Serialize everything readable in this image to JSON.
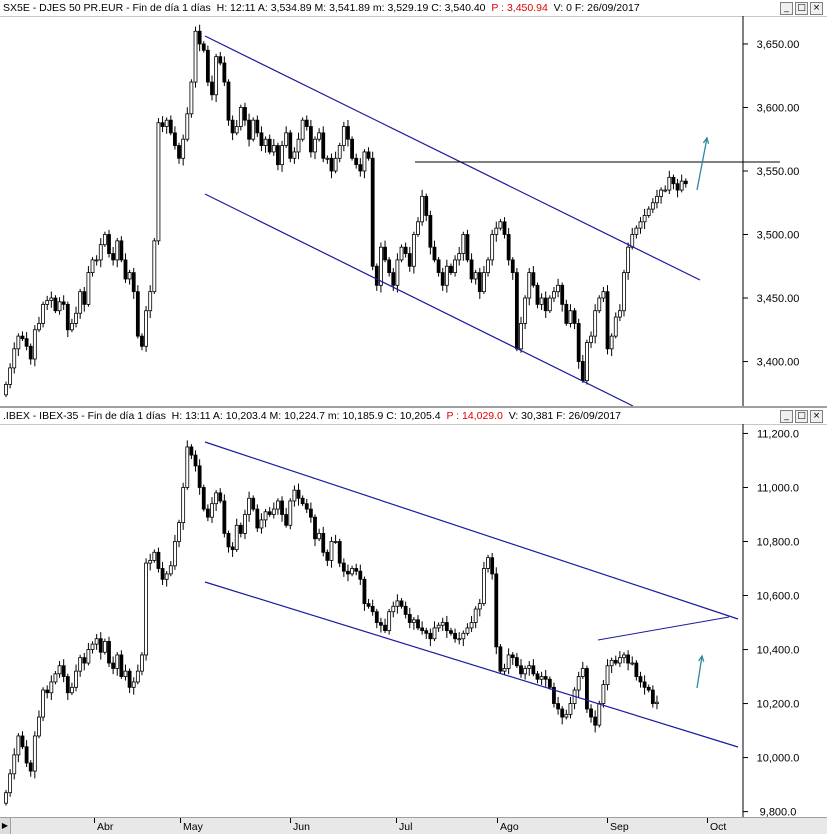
{
  "colors": {
    "line": "#1a1aa0",
    "bull": "#ffffff",
    "bear": "#000000",
    "arrow": "#2f8a9a",
    "resistance": "#000000",
    "price_change": "#e00000"
  },
  "panels": [
    {
      "title": {
        "symbol": "SX5E - DJES 50 PR.EUR - Fin de día 1 días",
        "stats": "H: 12:11  A: 3,534.89  M: 3,541.89  m: 3,529.19  C: 3,540.40",
        "pchange": "P : 3,450.94",
        "tail": "V: 0  F: 26/09/2017"
      },
      "yticks": [
        "3,650.00",
        "3,600.00",
        "3,550.00",
        "3,500.00",
        "3,450.00",
        "3,400.00"
      ]
    },
    {
      "title": {
        "symbol": ".IBEX - IBEX-35 - Fin de día 1 días",
        "stats": "H: 13:11  A: 10,203.4  M: 10,224.7  m: 10,185.9  C: 10,205.4",
        "pchange": "P : 14,029.0",
        "tail": "V: 30,381  F: 26/09/2017"
      },
      "yticks": [
        "11,200.0",
        "11,000.0",
        "10,800.0",
        "10,600.0",
        "10,400.0",
        "10,200.0",
        "10,000.0",
        "9,800.0"
      ]
    }
  ],
  "window_buttons": [
    "_",
    "□",
    "×"
  ],
  "months": [
    "Abr",
    "May",
    "Jun",
    "Jul",
    "Ago",
    "Sep",
    "Oct"
  ],
  "chart_data": [
    {
      "type": "candlestick",
      "title": "SX5E - DJES 50 PR.EUR",
      "ylim": [
        3365,
        3672
      ],
      "closes": [
        3382,
        3395,
        3410,
        3420,
        3418,
        3412,
        3402,
        3425,
        3430,
        3445,
        3448,
        3450,
        3440,
        3447,
        3445,
        3425,
        3430,
        3438,
        3455,
        3445,
        3470,
        3480,
        3480,
        3492,
        3500,
        3485,
        3480,
        3495,
        3480,
        3465,
        3470,
        3455,
        3420,
        3412,
        3440,
        3455,
        3495,
        3588,
        3585,
        3590,
        3580,
        3570,
        3560,
        3575,
        3595,
        3620,
        3660,
        3650,
        3645,
        3620,
        3610,
        3640,
        3635,
        3620,
        3590,
        3580,
        3585,
        3600,
        3590,
        3575,
        3590,
        3580,
        3570,
        3575,
        3565,
        3570,
        3555,
        3570,
        3580,
        3560,
        3565,
        3575,
        3590,
        3585,
        3565,
        3575,
        3580,
        3560,
        3560,
        3550,
        3560,
        3570,
        3585,
        3575,
        3560,
        3555,
        3550,
        3565,
        3560,
        3475,
        3460,
        3490,
        3480,
        3470,
        3460,
        3480,
        3490,
        3485,
        3475,
        3500,
        3510,
        3530,
        3515,
        3490,
        3480,
        3470,
        3460,
        3475,
        3470,
        3480,
        3485,
        3500,
        3480,
        3465,
        3470,
        3455,
        3470,
        3480,
        3500,
        3505,
        3510,
        3500,
        3480,
        3470,
        3410,
        3430,
        3450,
        3470,
        3460,
        3445,
        3450,
        3440,
        3450,
        3455,
        3460,
        3445,
        3430,
        3440,
        3430,
        3400,
        3385,
        3415,
        3420,
        3440,
        3450,
        3455,
        3410,
        3420,
        3435,
        3440,
        3470,
        3490,
        3500,
        3505,
        3510,
        3515,
        3520,
        3525,
        3530,
        3535,
        3535,
        3545,
        3540,
        3535,
        3542,
        3540
      ]
    },
    {
      "type": "candlestick",
      "title": "IBEX-35",
      "ylim": [
        9780,
        11235
      ],
      "closes": [
        9870,
        9940,
        10010,
        10080,
        10040,
        9980,
        9950,
        10080,
        10150,
        10250,
        10240,
        10280,
        10310,
        10340,
        10300,
        10240,
        10260,
        10320,
        10370,
        10350,
        10400,
        10420,
        10440,
        10390,
        10430,
        10350,
        10330,
        10380,
        10300,
        10320,
        10260,
        10280,
        10320,
        10380,
        10720,
        10730,
        10760,
        10700,
        10660,
        10680,
        10710,
        10800,
        10870,
        11000,
        11150,
        11120,
        11080,
        11000,
        10920,
        10890,
        10940,
        10980,
        10950,
        10830,
        10780,
        10770,
        10860,
        10830,
        10900,
        10960,
        10920,
        10850,
        10880,
        10910,
        10900,
        10920,
        10950,
        10900,
        10860,
        10950,
        10990,
        10960,
        10940,
        10920,
        10890,
        10810,
        10830,
        10760,
        10730,
        10800,
        10800,
        10720,
        10690,
        10680,
        10700,
        10690,
        10660,
        10570,
        10560,
        10540,
        10500,
        10490,
        10470,
        10540,
        10560,
        10580,
        10560,
        10530,
        10500,
        10510,
        10480,
        10470,
        10460,
        10440,
        10480,
        10490,
        10500,
        10470,
        10460,
        10440,
        10440,
        10460,
        10480,
        10500,
        10550,
        10570,
        10700,
        10740,
        10680,
        10410,
        10320,
        10330,
        10380,
        10370,
        10340,
        10310,
        10330,
        10340,
        10310,
        10290,
        10300,
        10290,
        10260,
        10200,
        10180,
        10150,
        10160,
        10200,
        10250,
        10300,
        10330,
        10180,
        10150,
        10120,
        10200,
        10270,
        10340,
        10360,
        10350,
        10370,
        10380,
        10350,
        10350,
        10300,
        10280,
        10260,
        10250,
        10200,
        10205
      ]
    }
  ]
}
